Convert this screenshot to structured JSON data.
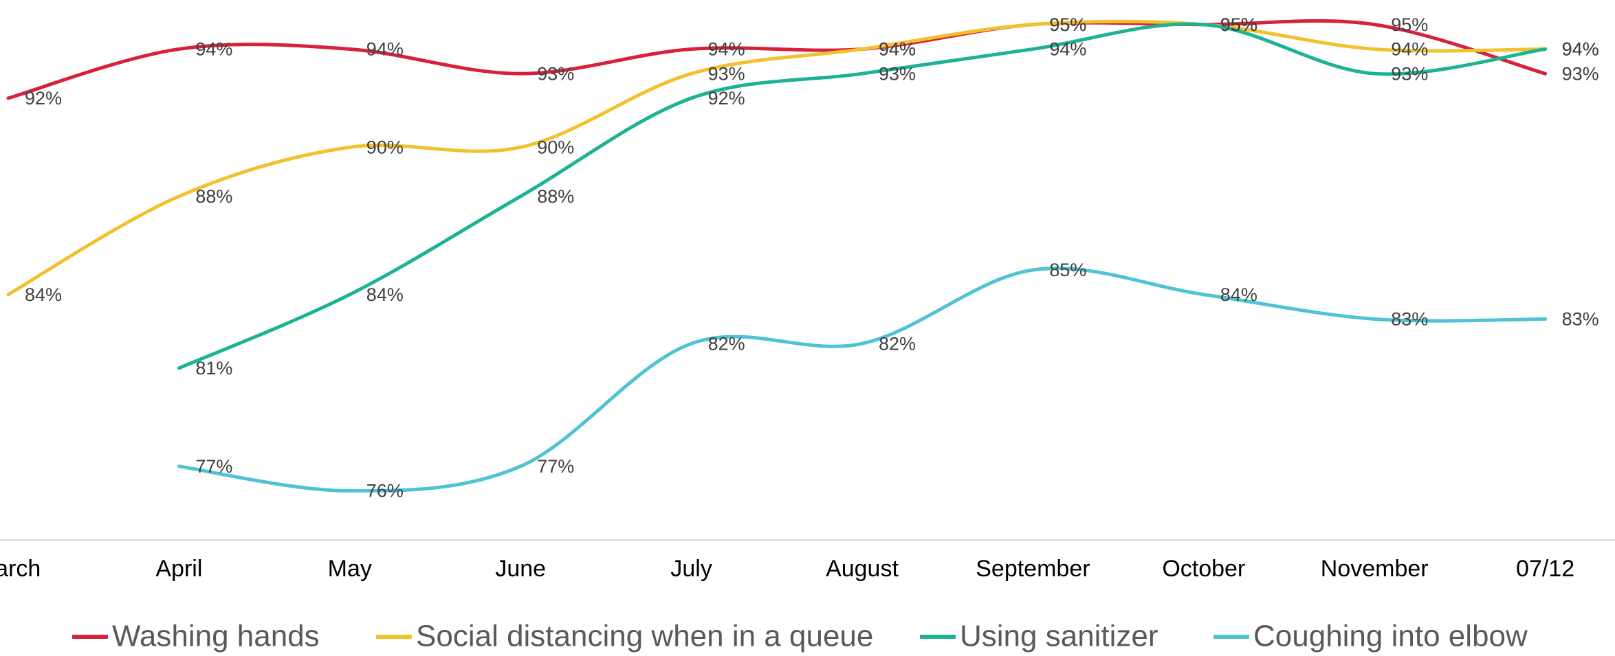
{
  "chart_data": {
    "type": "line",
    "categories": [
      "March",
      "April",
      "May",
      "June",
      "July",
      "August",
      "September",
      "October",
      "November",
      "07/12"
    ],
    "ylim": [
      74,
      96
    ],
    "smooth": true,
    "legend": "bottom",
    "series": [
      {
        "name": "Washing hands",
        "color": "#d7213c",
        "values": [
          92,
          94,
          94,
          93,
          94,
          94,
          95,
          95,
          95,
          93
        ],
        "value_labels": [
          "92%",
          "94%",
          "94%",
          "93%",
          "94%",
          "94%",
          "95%",
          "95%",
          "95%",
          "93%"
        ]
      },
      {
        "name": "Social distancing when in a queue",
        "color": "#f2c12e",
        "values": [
          84,
          88,
          90,
          90,
          93,
          94,
          95,
          95,
          94,
          94
        ],
        "value_labels": [
          "84%",
          "88%",
          "90%",
          "90%",
          "93%",
          "94%",
          "95%",
          "95%",
          "94%",
          "94%"
        ]
      },
      {
        "name": "Using sanitizer",
        "color": "#1bb394",
        "values": [
          null,
          81,
          84,
          88,
          92,
          93,
          94,
          95,
          93,
          94
        ],
        "value_labels": [
          null,
          "81%",
          "84%",
          "88%",
          "92%",
          "93%",
          "94%",
          "95%",
          "93%",
          "94%"
        ]
      },
      {
        "name": "Coughing into elbow",
        "color": "#4fc3d3",
        "values": [
          null,
          77,
          76,
          77,
          82,
          82,
          85,
          84,
          83,
          83
        ],
        "value_labels": [
          null,
          "77%",
          "76%",
          "77%",
          "82%",
          "82%",
          "85%",
          "84%",
          "83%",
          "83%"
        ]
      }
    ]
  }
}
